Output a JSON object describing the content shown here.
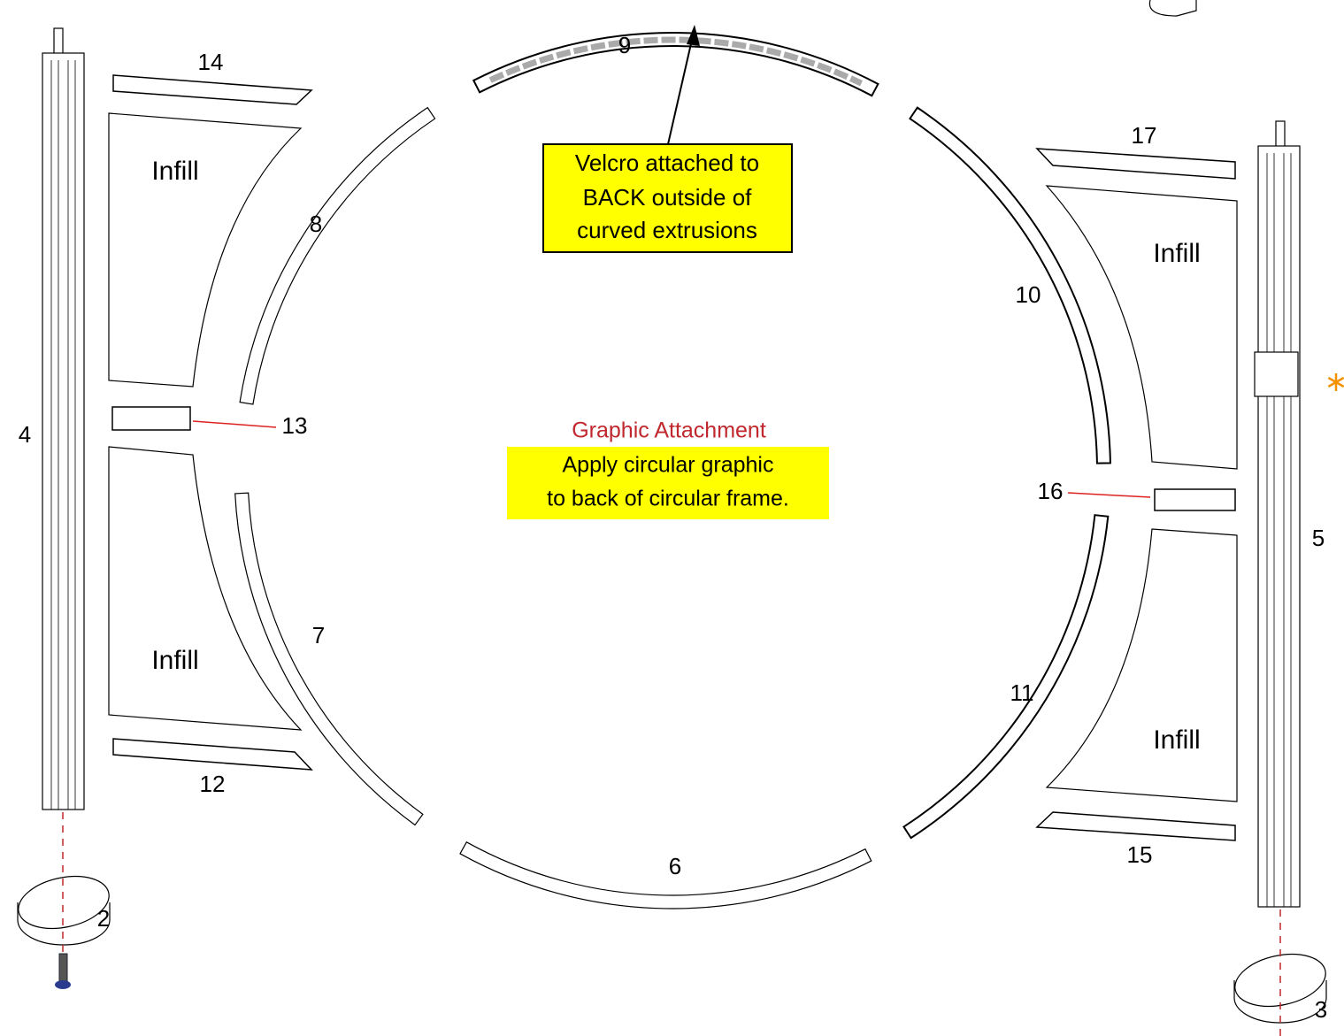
{
  "part_numbers": [
    "2",
    "3",
    "4",
    "5",
    "6",
    "7",
    "8",
    "9",
    "10",
    "11",
    "12",
    "13",
    "14",
    "15",
    "16",
    "17"
  ],
  "infill_labels": [
    "Infill",
    "Infill",
    "Infill",
    "Infill"
  ],
  "velcro_note": [
    "Velcro attached to",
    "BACK outside of",
    "curved extrusions"
  ],
  "graphic_attachment": {
    "title": "Graphic Attachment",
    "lines": [
      "Apply circular graphic",
      "to back of circular frame."
    ]
  }
}
